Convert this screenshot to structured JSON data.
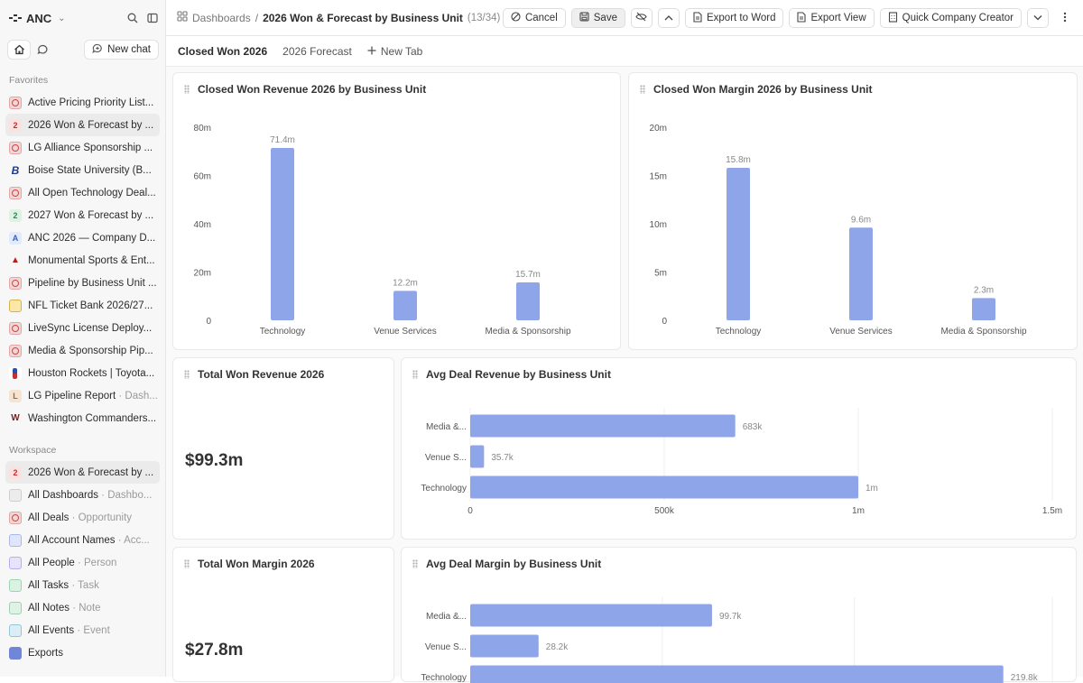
{
  "workspace": {
    "name": "ANC"
  },
  "nav": {
    "new_chat": "New chat"
  },
  "sidebar": {
    "favorites_label": "Favorites",
    "favorites": [
      {
        "label": "Active Pricing Priority List...",
        "icon": "dashboard-icon"
      },
      {
        "label": "2026 Won & Forecast by ...",
        "icon": "number-2-icon",
        "badge": "2",
        "selected": true
      },
      {
        "label": "LG Alliance Sponsorship ...",
        "icon": "dashboard-icon"
      },
      {
        "label": "Boise State University (B...",
        "icon": "boise-state-logo-icon",
        "badge": "B"
      },
      {
        "label": "All Open Technology Deal...",
        "icon": "dashboard-icon"
      },
      {
        "label": "2027 Won & Forecast by ...",
        "icon": "number-2-icon",
        "badge": "2"
      },
      {
        "label": "ANC 2026 — Company D...",
        "icon": "letter-a-icon",
        "badge": "A"
      },
      {
        "label": "Monumental Sports & Ent...",
        "icon": "monumental-logo-icon"
      },
      {
        "label": "Pipeline by Business Unit ...",
        "icon": "dashboard-icon"
      },
      {
        "label": "NFL Ticket Bank 2026/27...",
        "icon": "ticket-icon"
      },
      {
        "label": "LiveSync License Deploy...",
        "icon": "dashboard-icon"
      },
      {
        "label": "Media & Sponsorship Pip...",
        "icon": "dashboard-icon"
      },
      {
        "label": "Houston Rockets | Toyota...",
        "icon": "nba-logo-icon"
      },
      {
        "label": "LG Pipeline Report",
        "sub": " · Dash...",
        "icon": "letter-l-icon",
        "badge": "L"
      },
      {
        "label": "Washington Commanders...",
        "icon": "commanders-logo-icon",
        "badge": "W"
      }
    ],
    "workspace_label": "Workspace",
    "workspace_items": [
      {
        "label": "2026 Won & Forecast by ...",
        "icon": "number-2-icon",
        "badge": "2",
        "selected": true
      },
      {
        "label": "All Dashboards",
        "sub": " · Dashbo...",
        "icon": "dashboards-grid-icon"
      },
      {
        "label": "All Deals",
        "sub": " · Opportunity",
        "icon": "deals-icon"
      },
      {
        "label": "All Account Names",
        "sub": " · Acc...",
        "icon": "account-icon"
      },
      {
        "label": "All People",
        "sub": " · Person",
        "icon": "person-icon"
      },
      {
        "label": "All Tasks",
        "sub": " · Task",
        "icon": "task-icon"
      },
      {
        "label": "All Notes",
        "sub": " · Note",
        "icon": "note-icon"
      },
      {
        "label": "All Events",
        "sub": " · Event",
        "icon": "event-icon"
      },
      {
        "label": "Exports",
        "icon": "export-file-icon"
      }
    ]
  },
  "breadcrumb": {
    "root": "Dashboards",
    "sep": "/",
    "title": "2026 Won & Forecast by Business Unit",
    "count": "(13/34)"
  },
  "toolbar": {
    "cancel": "Cancel",
    "save": "Save",
    "export_word": "Export to Word",
    "export_view": "Export View",
    "quick_company": "Quick Company Creator"
  },
  "tabs": [
    {
      "label": "Closed Won 2026",
      "active": true
    },
    {
      "label": "2026 Forecast",
      "active": false
    }
  ],
  "new_tab": "New Tab",
  "cards": {
    "total_won_revenue": {
      "title": "Total Won Revenue 2026",
      "value": "$99.3m"
    },
    "total_won_margin": {
      "title": "Total Won Margin 2026",
      "value": "$27.8m"
    }
  },
  "colors": {
    "bar": "#8fa5ea",
    "accent_red": "#d04444"
  },
  "chart_data": [
    {
      "id": "revenue",
      "type": "bar",
      "title": "Closed Won Revenue 2026 by Business Unit",
      "categories": [
        "Technology",
        "Venue Services",
        "Media & Sponsorship"
      ],
      "values": [
        71.4,
        12.2,
        15.7
      ],
      "labels": [
        "71.4m",
        "12.2m",
        "15.7m"
      ],
      "ylim": [
        0,
        80
      ],
      "yticks": [
        0,
        20,
        40,
        60,
        80
      ],
      "ytick_labels": [
        "0",
        "20m",
        "40m",
        "60m",
        "80m"
      ],
      "grid": false
    },
    {
      "id": "margin",
      "type": "bar",
      "title": "Closed Won Margin 2026 by Business Unit",
      "categories": [
        "Technology",
        "Venue Services",
        "Media & Sponsorship"
      ],
      "values": [
        15.8,
        9.6,
        2.3
      ],
      "labels": [
        "15.8m",
        "9.6m",
        "2.3m"
      ],
      "ylim": [
        0,
        20
      ],
      "yticks": [
        0,
        5,
        10,
        15,
        20
      ],
      "ytick_labels": [
        "0",
        "5m",
        "10m",
        "15m",
        "20m"
      ],
      "grid": false
    },
    {
      "id": "avg_revenue",
      "type": "bar",
      "orientation": "horizontal",
      "title": "Avg Deal Revenue by Business Unit",
      "categories": [
        "Media &...",
        "Venue S...",
        "Technology"
      ],
      "values": [
        683,
        35.7,
        1000
      ],
      "labels": [
        "683k",
        "35.7k",
        "1m"
      ],
      "xlim": [
        0,
        1500
      ],
      "xticks": [
        0,
        500,
        1000,
        1500
      ],
      "xtick_labels": [
        "0",
        "500k",
        "1m",
        "1.5m"
      ],
      "grid": true
    },
    {
      "id": "avg_margin",
      "type": "bar",
      "orientation": "horizontal",
      "title": "Avg Deal Margin by Business Unit",
      "categories": [
        "Media &...",
        "Venue S...",
        "Technology"
      ],
      "values": [
        99.7,
        28.2,
        219.8
      ],
      "labels": [
        "99.7k",
        "28.2k",
        "219.8k"
      ],
      "xlim": [
        0,
        240
      ],
      "grid": true
    }
  ]
}
